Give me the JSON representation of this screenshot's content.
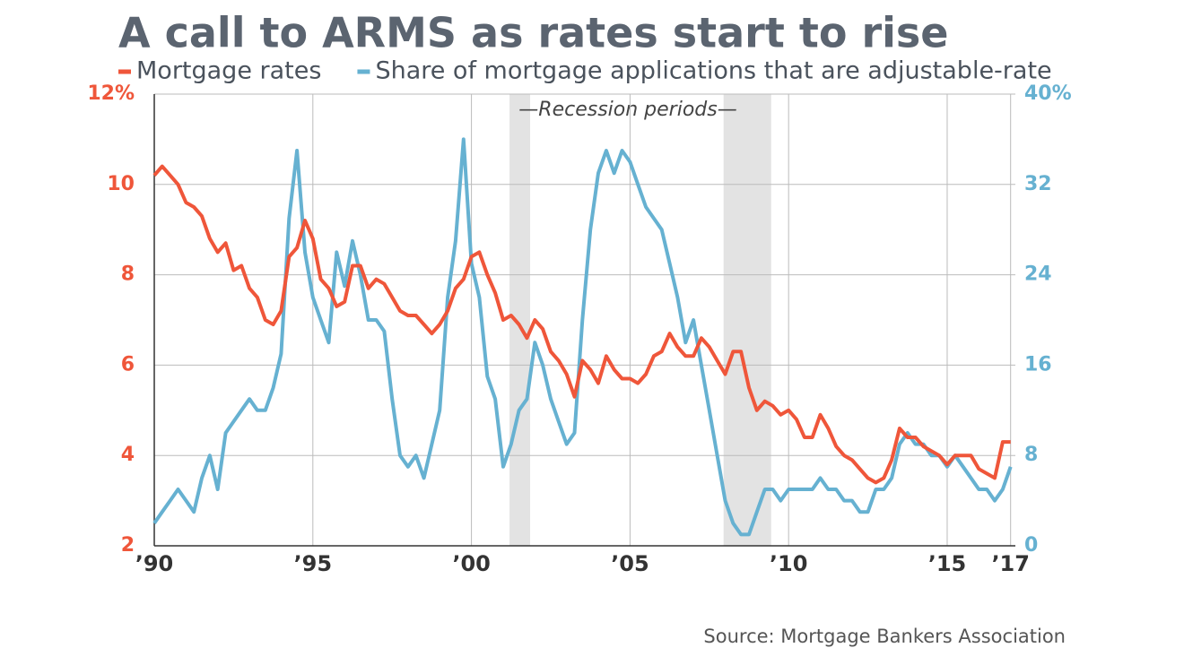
{
  "chart_data": {
    "type": "line",
    "title": "A call to ARMS as rates start to rise",
    "annotation": "—Recession periods—",
    "source": "Source: Mortgage Bankers Association",
    "recessions": [
      [
        2001.2,
        2001.85
      ],
      [
        2007.95,
        2009.45
      ]
    ],
    "x": [
      1990,
      1990.25,
      1990.5,
      1990.75,
      1991,
      1991.25,
      1991.5,
      1991.75,
      1992,
      1992.25,
      1992.5,
      1992.75,
      1993,
      1993.25,
      1993.5,
      1993.75,
      1994,
      1994.25,
      1994.5,
      1994.75,
      1995,
      1995.25,
      1995.5,
      1995.75,
      1996,
      1996.25,
      1996.5,
      1996.75,
      1997,
      1997.25,
      1997.5,
      1997.75,
      1998,
      1998.25,
      1998.5,
      1998.75,
      1999,
      1999.25,
      1999.5,
      1999.75,
      2000,
      2000.25,
      2000.5,
      2000.75,
      2001,
      2001.25,
      2001.5,
      2001.75,
      2002,
      2002.25,
      2002.5,
      2002.75,
      2003,
      2003.25,
      2003.5,
      2003.75,
      2004,
      2004.25,
      2004.5,
      2004.75,
      2005,
      2005.25,
      2005.5,
      2005.75,
      2006,
      2006.25,
      2006.5,
      2006.75,
      2007,
      2007.25,
      2007.5,
      2007.75,
      2008,
      2008.25,
      2008.5,
      2008.75,
      2009,
      2009.25,
      2009.5,
      2009.75,
      2010,
      2010.25,
      2010.5,
      2010.75,
      2011,
      2011.25,
      2011.5,
      2011.75,
      2012,
      2012.25,
      2012.5,
      2012.75,
      2013,
      2013.25,
      2013.5,
      2013.75,
      2014,
      2014.25,
      2014.5,
      2014.75,
      2015,
      2015.25,
      2015.5,
      2015.75,
      2016,
      2016.25,
      2016.5,
      2016.75,
      2017
    ],
    "series": [
      {
        "name": "Mortgage rates",
        "color": "#ef563a",
        "axis": "y",
        "values": [
          10.2,
          10.4,
          10.2,
          10.0,
          9.6,
          9.5,
          9.3,
          8.8,
          8.5,
          8.7,
          8.1,
          8.2,
          7.7,
          7.5,
          7.0,
          6.9,
          7.2,
          8.4,
          8.6,
          9.2,
          8.8,
          7.9,
          7.7,
          7.3,
          7.4,
          8.2,
          8.2,
          7.7,
          7.9,
          7.8,
          7.5,
          7.2,
          7.1,
          7.1,
          6.9,
          6.7,
          6.9,
          7.2,
          7.7,
          7.9,
          8.4,
          8.5,
          8.0,
          7.6,
          7.0,
          7.1,
          6.9,
          6.6,
          7.0,
          6.8,
          6.3,
          6.1,
          5.8,
          5.3,
          6.1,
          5.9,
          5.6,
          6.2,
          5.9,
          5.7,
          5.7,
          5.6,
          5.8,
          6.2,
          6.3,
          6.7,
          6.4,
          6.2,
          6.2,
          6.6,
          6.4,
          6.1,
          5.8,
          6.3,
          6.3,
          5.5,
          5.0,
          5.2,
          5.1,
          4.9,
          5.0,
          4.8,
          4.4,
          4.4,
          4.9,
          4.6,
          4.2,
          4.0,
          3.9,
          3.7,
          3.5,
          3.4,
          3.5,
          3.9,
          4.6,
          4.4,
          4.4,
          4.2,
          4.1,
          4.0,
          3.8,
          4.0,
          4.0,
          4.0,
          3.7,
          3.6,
          3.5,
          4.3,
          4.3
        ]
      },
      {
        "name": "Share of mortgage applications that are adjustable-rate",
        "color": "#66b1d1",
        "axis": "y2",
        "values": [
          2,
          3,
          4,
          5,
          4,
          3,
          6,
          8,
          5,
          10,
          11,
          12,
          13,
          12,
          12,
          14,
          17,
          29,
          35,
          26,
          22,
          20,
          18,
          26,
          23,
          27,
          24,
          20,
          20,
          19,
          13,
          8,
          7,
          8,
          6,
          9,
          12,
          22,
          27,
          36,
          25,
          22,
          15,
          13,
          7,
          9,
          12,
          13,
          18,
          16,
          13,
          11,
          9,
          10,
          20,
          28,
          33,
          35,
          33,
          35,
          34,
          32,
          30,
          29,
          28,
          25,
          22,
          18,
          20,
          16,
          12,
          8,
          4,
          2,
          1,
          1,
          3,
          5,
          5,
          4,
          5,
          5,
          5,
          5,
          6,
          5,
          5,
          4,
          4,
          3,
          3,
          5,
          5,
          6,
          9,
          10,
          9,
          9,
          8,
          8,
          7,
          8,
          7,
          6,
          5,
          5,
          4,
          5,
          7
        ]
      }
    ],
    "xlim": [
      1990,
      2017.15
    ],
    "xticks": [
      {
        "value": 1990,
        "label": "’90"
      },
      {
        "value": 1995,
        "label": "’95"
      },
      {
        "value": 2000,
        "label": "’00"
      },
      {
        "value": 2005,
        "label": "’05"
      },
      {
        "value": 2010,
        "label": "’10"
      },
      {
        "value": 2015,
        "label": "’15"
      },
      {
        "value": 2017,
        "label": "’17"
      }
    ],
    "ylim": [
      2,
      12
    ],
    "yticks": [
      2,
      4,
      6,
      8,
      10,
      {
        "value": 12,
        "label": "12%"
      }
    ],
    "y2lim": [
      0,
      40
    ],
    "y2ticks": [
      0,
      8,
      16,
      24,
      32,
      {
        "value": 40,
        "label": "40%"
      }
    ],
    "grid": true
  }
}
